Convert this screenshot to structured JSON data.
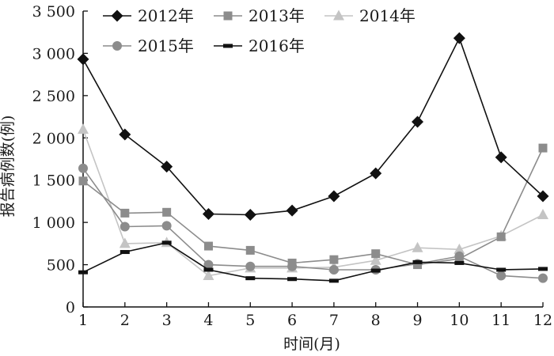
{
  "chart_data": {
    "type": "line",
    "title": "",
    "xlabel": "时间(月)",
    "ylabel": "报告病例数(例)",
    "x": [
      1,
      2,
      3,
      4,
      5,
      6,
      7,
      8,
      9,
      10,
      11,
      12
    ],
    "x_tick_labels": [
      "1",
      "2",
      "3",
      "4",
      "5",
      "6",
      "7",
      "8",
      "9",
      "10",
      "11",
      "12"
    ],
    "xlim": [
      1,
      12
    ],
    "ylim": [
      0,
      3500
    ],
    "y_ticks": [
      0,
      500,
      1000,
      1500,
      2000,
      2500,
      3000,
      3500
    ],
    "y_tick_labels": [
      "0",
      "500",
      "1 000",
      "1 500",
      "2 000",
      "2 500",
      "3 000",
      "3 500"
    ],
    "grid": false,
    "legend_position": "top",
    "series": [
      {
        "name": "2012年",
        "marker": "diamond",
        "color": "#111111",
        "marker_color": "#111111",
        "values": [
          2930,
          2040,
          1660,
          1100,
          1090,
          1140,
          1310,
          1580,
          2190,
          3180,
          1770,
          1310
        ]
      },
      {
        "name": "2013年",
        "marker": "square",
        "color": "#8c8c8c",
        "marker_color": "#8c8c8c",
        "values": [
          1490,
          1110,
          1120,
          720,
          670,
          520,
          560,
          630,
          500,
          570,
          830,
          1880
        ]
      },
      {
        "name": "2014年",
        "marker": "triangle",
        "color": "#c4c4c4",
        "marker_color": "#c4c4c4",
        "values": [
          2100,
          750,
          760,
          370,
          460,
          460,
          470,
          550,
          700,
          680,
          840,
          1090
        ]
      },
      {
        "name": "2015年",
        "marker": "circle",
        "color": "#8c8c8c",
        "marker_color": "#8c8c8c",
        "values": [
          1640,
          950,
          960,
          500,
          480,
          480,
          440,
          440,
          510,
          600,
          370,
          340
        ]
      },
      {
        "name": "2016年",
        "marker": "dash",
        "color": "#111111",
        "marker_color": "#111111",
        "values": [
          410,
          650,
          760,
          440,
          340,
          330,
          310,
          430,
          530,
          520,
          440,
          450
        ]
      }
    ]
  }
}
